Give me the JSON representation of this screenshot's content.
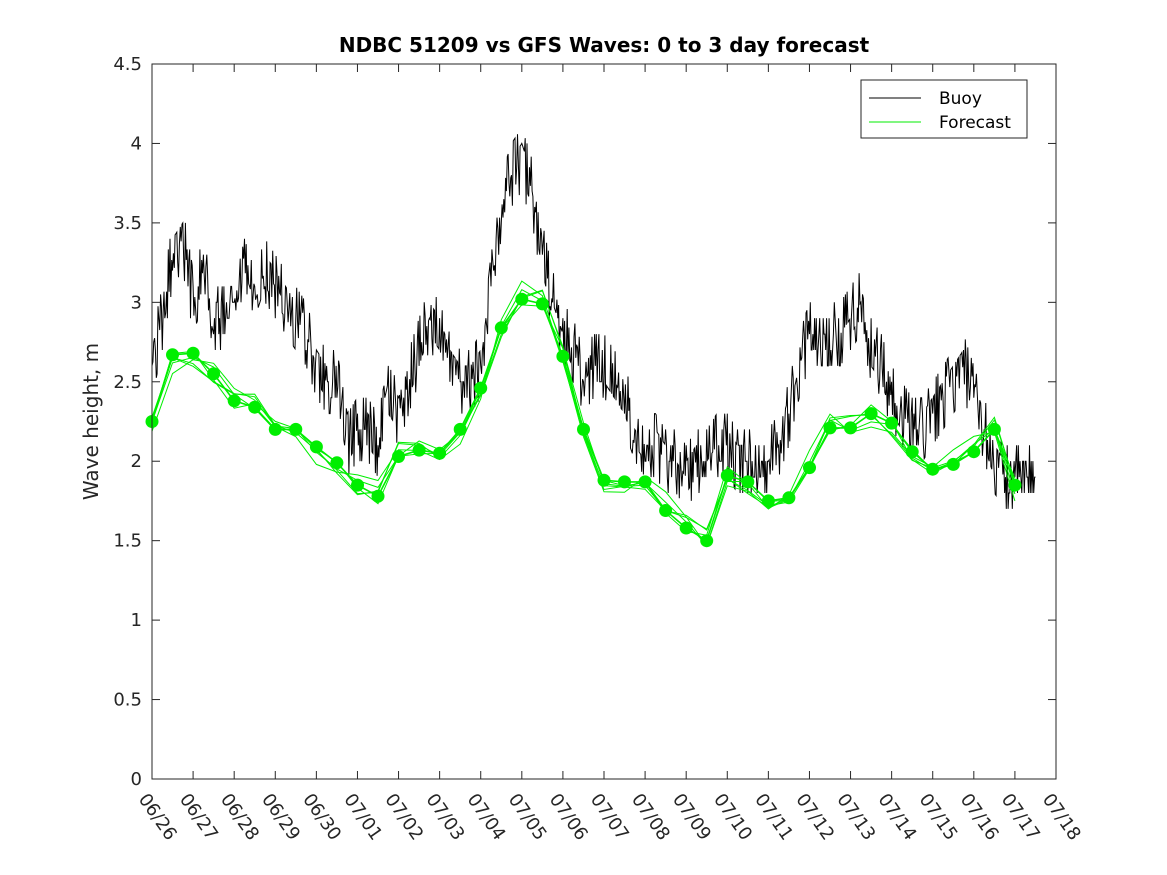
{
  "chart_data": {
    "type": "line",
    "title": "NDBC 51209 vs GFS Waves: 0 to 3 day forecast",
    "xlabel": "",
    "ylabel": "Wave height, m",
    "x_start": "06/26",
    "x_end": "07/18",
    "x_tick_labels": [
      "06/26",
      "06/27",
      "06/28",
      "06/29",
      "06/30",
      "07/01",
      "07/02",
      "07/03",
      "07/04",
      "07/05",
      "07/06",
      "07/07",
      "07/08",
      "07/09",
      "07/10",
      "07/11",
      "07/12",
      "07/13",
      "07/14",
      "07/15",
      "07/16",
      "07/17",
      "07/18"
    ],
    "ylim": [
      0,
      4.5
    ],
    "y_ticks": [
      "0",
      "0.5",
      "1",
      "1.5",
      "2",
      "2.5",
      "3",
      "3.5",
      "4",
      "4.5"
    ],
    "grid": false,
    "legend_position": "top-right",
    "colors": {
      "buoy": "#000000",
      "forecast": "#00ee00"
    },
    "series": [
      {
        "name": "Buoy",
        "style": "line",
        "x": [
          "06/26 00:00",
          "06/26 06:00",
          "06/26 12:00",
          "06/26 18:00",
          "06/27 00:00",
          "06/27 06:00",
          "06/27 12:00",
          "06/27 18:00",
          "06/28 00:00",
          "06/28 06:00",
          "06/28 12:00",
          "06/28 18:00",
          "06/29 00:00",
          "06/29 06:00",
          "06/29 12:00",
          "06/29 18:00",
          "06/30 00:00",
          "06/30 06:00",
          "06/30 12:00",
          "06/30 18:00",
          "07/01 00:00",
          "07/01 06:00",
          "07/01 12:00",
          "07/01 18:00",
          "07/02 00:00",
          "07/02 06:00",
          "07/02 12:00",
          "07/02 18:00",
          "07/03 00:00",
          "07/03 06:00",
          "07/03 12:00",
          "07/03 18:00",
          "07/04 00:00",
          "07/04 06:00",
          "07/04 12:00",
          "07/04 18:00",
          "07/05 00:00",
          "07/05 06:00",
          "07/05 12:00",
          "07/05 18:00",
          "07/06 00:00",
          "07/06 06:00",
          "07/06 12:00",
          "07/06 18:00",
          "07/07 00:00",
          "07/07 06:00",
          "07/07 12:00",
          "07/07 18:00",
          "07/08 00:00",
          "07/08 06:00",
          "07/08 12:00",
          "07/08 18:00",
          "07/09 00:00",
          "07/09 06:00",
          "07/09 12:00",
          "07/09 18:00",
          "07/10 00:00",
          "07/10 06:00",
          "07/10 12:00",
          "07/10 18:00",
          "07/11 00:00",
          "07/11 06:00",
          "07/11 12:00",
          "07/11 18:00",
          "07/12 00:00",
          "07/12 06:00",
          "07/12 12:00",
          "07/12 18:00",
          "07/13 00:00",
          "07/13 06:00",
          "07/13 12:00",
          "07/13 18:00",
          "07/14 00:00",
          "07/14 06:00",
          "07/14 12:00",
          "07/14 18:00",
          "07/15 00:00",
          "07/15 06:00",
          "07/15 12:00",
          "07/15 18:00",
          "07/16 00:00",
          "07/16 06:00",
          "07/16 12:00",
          "07/16 18:00",
          "07/17 00:00",
          "07/17 06:00",
          "07/17 12:00"
        ],
        "values": [
          2.6,
          2.9,
          3.3,
          3.4,
          3.0,
          3.2,
          2.9,
          2.9,
          2.9,
          3.2,
          3.0,
          3.2,
          3.1,
          3.0,
          2.9,
          2.8,
          2.6,
          2.5,
          2.5,
          2.1,
          2.2,
          2.2,
          2.1,
          2.4,
          2.3,
          2.5,
          2.7,
          2.9,
          2.8,
          2.6,
          2.5,
          2.5,
          2.6,
          3.2,
          3.6,
          3.8,
          3.9,
          3.7,
          3.3,
          3.0,
          2.8,
          2.7,
          2.5,
          2.6,
          2.6,
          2.5,
          2.4,
          2.2,
          2.1,
          2.1,
          2.0,
          2.0,
          1.9,
          2.0,
          2.0,
          2.1,
          2.1,
          2.0,
          2.0,
          2.0,
          2.0,
          2.1,
          2.3,
          2.6,
          2.8,
          2.8,
          2.8,
          2.8,
          2.9,
          3.0,
          2.7,
          2.6,
          2.4,
          2.3,
          2.2,
          2.2,
          2.3,
          2.4,
          2.5,
          2.6,
          2.4,
          2.2,
          2.0,
          1.9,
          1.9,
          1.9,
          1.9
        ]
      },
      {
        "name": "Forecast",
        "style": "line-with-markers",
        "x": [
          "06/26 00:00",
          "06/26 12:00",
          "06/27 00:00",
          "06/27 12:00",
          "06/28 00:00",
          "06/28 12:00",
          "06/29 00:00",
          "06/29 12:00",
          "06/30 00:00",
          "06/30 12:00",
          "07/01 00:00",
          "07/01 12:00",
          "07/02 00:00",
          "07/02 12:00",
          "07/03 00:00",
          "07/03 12:00",
          "07/04 00:00",
          "07/04 12:00",
          "07/05 00:00",
          "07/05 12:00",
          "07/06 00:00",
          "07/06 12:00",
          "07/07 00:00",
          "07/07 12:00",
          "07/08 00:00",
          "07/08 12:00",
          "07/09 00:00",
          "07/09 12:00",
          "07/10 00:00",
          "07/10 12:00",
          "07/11 00:00",
          "07/11 12:00",
          "07/12 00:00",
          "07/12 12:00",
          "07/13 00:00",
          "07/13 12:00",
          "07/14 00:00",
          "07/14 12:00",
          "07/15 00:00",
          "07/15 12:00",
          "07/16 00:00",
          "07/16 12:00",
          "07/17 00:00"
        ],
        "values": [
          2.25,
          2.67,
          2.68,
          2.55,
          2.38,
          2.34,
          2.2,
          2.2,
          2.09,
          1.99,
          1.85,
          1.78,
          2.03,
          2.07,
          2.05,
          2.2,
          2.46,
          2.84,
          3.02,
          2.99,
          2.66,
          2.2,
          1.88,
          1.87,
          1.87,
          1.69,
          1.58,
          1.5,
          1.91,
          1.87,
          1.75,
          1.77,
          1.96,
          2.21,
          2.21,
          2.3,
          2.24,
          2.06,
          1.95,
          1.98,
          2.06,
          2.2,
          1.85
        ]
      }
    ]
  }
}
